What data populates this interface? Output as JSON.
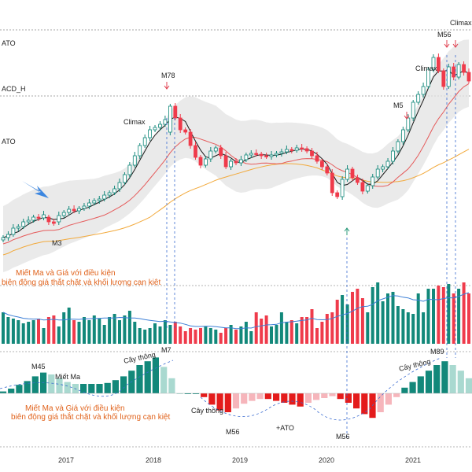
{
  "chart_data": {
    "type": "candlestick-with-volume-and-histogram",
    "x_ticks": [
      "2017",
      "2018",
      "2019",
      "2020",
      "2021"
    ],
    "left_edge_labels": [
      "ATO",
      "ACD_H",
      "ATO"
    ],
    "price_annotations": [
      "M78",
      "Climax",
      "M3",
      "M5",
      "M56",
      "Climax",
      "Climax"
    ],
    "oscillator_annotations": [
      "M45",
      "Miết Ma",
      "Cây thông",
      "M7",
      "Cây thông",
      "M56",
      "+ATO",
      "M56",
      "Cây thông",
      "M89"
    ],
    "note_mid": [
      "Miết Ma và Giá với điều kiện",
      "biên động giá thắt chặt và khối lượng cạn kiệt"
    ],
    "note_bottom": [
      "Miết Ma và Giá với điều kiện",
      "biên động giá thắt chặt và khối lượng cạn kiệt"
    ],
    "colors": {
      "up": "#12887a",
      "down": "#ef3b4b",
      "ma_short": "#1a1a1a",
      "ma_mid": "#e55a5a",
      "ma_long": "#f2a93b",
      "band": "#e3e3e3",
      "volume_ma": "#3c7fd6",
      "arrow": "#3b86e0"
    },
    "price_series": {
      "close": [
        302,
        298,
        290,
        288,
        282,
        280,
        276,
        277,
        273,
        282,
        284,
        274,
        270,
        266,
        268,
        265,
        262,
        258,
        255,
        253,
        248,
        245,
        240,
        232,
        222,
        210,
        198,
        185,
        175,
        165,
        162,
        158,
        152,
        135,
        150,
        165,
        168,
        185,
        200,
        210,
        202,
        192,
        188,
        198,
        212,
        205,
        207,
        203,
        197,
        195,
        196,
        198,
        199,
        197,
        195,
        193,
        190,
        191,
        188,
        189,
        192,
        198,
        205,
        212,
        220,
        245,
        250,
        228,
        215,
        226,
        232,
        243,
        236,
        225,
        215,
        212,
        205,
        192,
        180,
        165,
        150,
        130,
        120,
        110,
        88,
        73,
        90,
        110,
        85,
        98,
        82,
        92,
        103
      ],
      "open": [
        305,
        302,
        298,
        290,
        288,
        282,
        280,
        276,
        277,
        276,
        282,
        282,
        274,
        270,
        266,
        268,
        265,
        262,
        258,
        255,
        253,
        248,
        245,
        240,
        232,
        222,
        210,
        198,
        185,
        175,
        165,
        162,
        158,
        168,
        135,
        150,
        165,
        168,
        185,
        200,
        210,
        202,
        192,
        188,
        198,
        212,
        205,
        207,
        203,
        197,
        195,
        196,
        198,
        199,
        197,
        195,
        193,
        190,
        191,
        188,
        189,
        192,
        198,
        205,
        212,
        220,
        245,
        250,
        228,
        215,
        226,
        232,
        243,
        236,
        225,
        215,
        212,
        205,
        192,
        180,
        165,
        150,
        130,
        120,
        110,
        88,
        73,
        90,
        110,
        85,
        98,
        82,
        92
      ]
    },
    "volume": [
      40,
      34,
      32,
      30,
      26,
      28,
      30,
      32,
      20,
      34,
      36,
      22,
      40,
      46,
      30,
      28,
      34,
      30,
      36,
      32,
      24,
      34,
      38,
      30,
      36,
      42,
      28,
      20,
      18,
      20,
      26,
      22,
      30,
      24,
      28,
      22,
      16,
      20,
      18,
      20,
      22,
      20,
      18,
      14,
      20,
      24,
      18,
      22,
      28,
      16,
      40,
      32,
      36,
      22,
      24,
      40,
      28,
      30,
      26,
      34,
      34,
      44,
      20,
      28,
      38,
      40,
      56,
      62,
      50,
      66,
      70,
      58,
      40,
      72,
      78,
      54,
      64,
      66,
      48,
      44,
      40,
      38,
      64,
      40,
      70,
      70,
      74,
      72,
      76,
      64,
      70,
      78,
      64
    ],
    "histogram": [
      {
        "v": 0.2
      },
      {
        "v": 0.5
      },
      {
        "v": 0.9
      },
      {
        "v": 1.3
      },
      {
        "v": 1.8
      },
      {
        "v": 2.2
      },
      {
        "v": 2.0
      },
      {
        "v": 1.6
      },
      {
        "v": 1.2
      },
      {
        "v": 1.0
      },
      {
        "v": 1.0
      },
      {
        "v": 1.0
      },
      {
        "v": 1.0
      },
      {
        "v": 1.1
      },
      {
        "v": 1.4
      },
      {
        "v": 1.8
      },
      {
        "v": 2.4
      },
      {
        "v": 3.0
      },
      {
        "v": 3.4
      },
      {
        "v": 3.8
      },
      {
        "v": 2.8
      },
      {
        "v": 1.6
      },
      {
        "v": 0
      },
      {
        "v": 0
      },
      {
        "v": 0
      },
      {
        "v": -0.4
      },
      {
        "v": -1.2
      },
      {
        "v": -1.8
      },
      {
        "v": -2.0
      },
      {
        "v": -1.6
      },
      {
        "v": -1.1
      },
      {
        "v": -0.8
      },
      {
        "v": -0.6
      },
      {
        "v": -0.6
      },
      {
        "v": -0.8
      },
      {
        "v": -1.0
      },
      {
        "v": -1.2
      },
      {
        "v": -1.4
      },
      {
        "v": -1.0
      },
      {
        "v": -0.7
      },
      {
        "v": -0.5
      },
      {
        "v": -0.3
      },
      {
        "v": -0.6
      },
      {
        "v": -1.0
      },
      {
        "v": -1.6
      },
      {
        "v": -2.2
      },
      {
        "v": -2.6
      },
      {
        "v": -2.0
      },
      {
        "v": -1.2
      },
      {
        "v": -0.4
      },
      {
        "v": 0.6
      },
      {
        "v": 1.2
      },
      {
        "v": 1.8
      },
      {
        "v": 2.4
      },
      {
        "v": 3.0
      },
      {
        "v": 3.4
      },
      {
        "v": 3.0
      },
      {
        "v": 2.4
      },
      {
        "v": 1.6
      }
    ]
  }
}
